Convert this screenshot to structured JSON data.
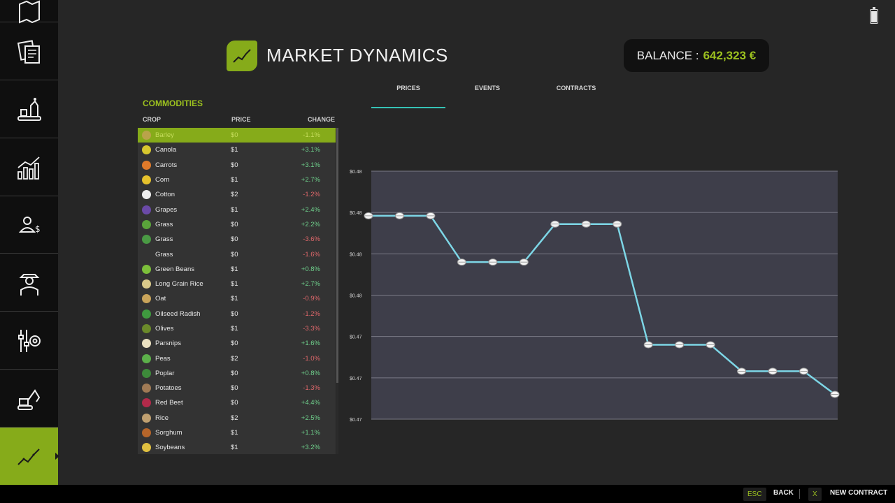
{
  "header": {
    "title": "MARKET DYNAMICS",
    "balance_label": "BALANCE :",
    "balance_value": "642,323 €"
  },
  "tabs": [
    {
      "label": "PRICES",
      "active": true
    },
    {
      "label": "EVENTS",
      "active": false
    },
    {
      "label": "CONTRACTS",
      "active": false
    }
  ],
  "sidebar": {
    "items": [
      {
        "icon": "map-icon"
      },
      {
        "icon": "contracts-icon"
      },
      {
        "icon": "production-icon"
      },
      {
        "icon": "statistics-icon"
      },
      {
        "icon": "finances-icon"
      },
      {
        "icon": "workers-icon"
      },
      {
        "icon": "settings-icon"
      },
      {
        "icon": "vehicles-icon"
      },
      {
        "icon": "market-chart-icon",
        "active": true
      }
    ]
  },
  "commodities": {
    "title": "COMMODITIES",
    "columns": {
      "crop": "CROP",
      "price": "PRICE",
      "change": "CHANGE"
    },
    "rows": [
      {
        "crop": "Barley",
        "price": "$0",
        "change": "-1.1%",
        "dir": "neg",
        "color": "#b9a34a",
        "selected": true
      },
      {
        "crop": "Canola",
        "price": "$1",
        "change": "+3.1%",
        "dir": "pos",
        "color": "#d7c72e"
      },
      {
        "crop": "Carrots",
        "price": "$0",
        "change": "+3.1%",
        "dir": "pos",
        "color": "#e07a2a"
      },
      {
        "crop": "Corn",
        "price": "$1",
        "change": "+2.7%",
        "dir": "pos",
        "color": "#e6c22c"
      },
      {
        "crop": "Cotton",
        "price": "$2",
        "change": "-1.2%",
        "dir": "neg",
        "color": "#eeeeee"
      },
      {
        "crop": "Grapes",
        "price": "$1",
        "change": "+2.4%",
        "dir": "pos",
        "color": "#6b4aa8"
      },
      {
        "crop": "Grass",
        "price": "$0",
        "change": "+2.2%",
        "dir": "pos",
        "color": "#5aa43a"
      },
      {
        "crop": "Grass",
        "price": "$0",
        "change": "-3.6%",
        "dir": "neg",
        "color": "#4a9a44"
      },
      {
        "crop": "Grass",
        "price": "$0",
        "change": "-1.6%",
        "dir": "neg",
        "color": ""
      },
      {
        "crop": "Green Beans",
        "price": "$1",
        "change": "+0.8%",
        "dir": "pos",
        "color": "#7cbf3a"
      },
      {
        "crop": "Long Grain Rice",
        "price": "$1",
        "change": "+2.7%",
        "dir": "pos",
        "color": "#d9c98a"
      },
      {
        "crop": "Oat",
        "price": "$1",
        "change": "-0.9%",
        "dir": "neg",
        "color": "#c9a45a"
      },
      {
        "crop": "Oilseed Radish",
        "price": "$0",
        "change": "-1.2%",
        "dir": "neg",
        "color": "#3f9a3f"
      },
      {
        "crop": "Olives",
        "price": "$1",
        "change": "-3.3%",
        "dir": "neg",
        "color": "#6b8a2a"
      },
      {
        "crop": "Parsnips",
        "price": "$0",
        "change": "+1.6%",
        "dir": "pos",
        "color": "#eae0c0"
      },
      {
        "crop": "Peas",
        "price": "$2",
        "change": "-1.0%",
        "dir": "neg",
        "color": "#5cb04a"
      },
      {
        "crop": "Poplar",
        "price": "$0",
        "change": "+0.8%",
        "dir": "pos",
        "color": "#3d8a3a"
      },
      {
        "crop": "Potatoes",
        "price": "$0",
        "change": "-1.3%",
        "dir": "neg",
        "color": "#a07a55"
      },
      {
        "crop": "Red Beet",
        "price": "$0",
        "change": "+4.4%",
        "dir": "pos",
        "color": "#b32a4a"
      },
      {
        "crop": "Rice",
        "price": "$2",
        "change": "+2.5%",
        "dir": "pos",
        "color": "#c0a070"
      },
      {
        "crop": "Sorghum",
        "price": "$1",
        "change": "+1.1%",
        "dir": "pos",
        "color": "#b5652a"
      },
      {
        "crop": "Soybeans",
        "price": "$1",
        "change": "+3.2%",
        "dir": "pos",
        "color": "#e0c040"
      }
    ]
  },
  "chart_data": {
    "type": "line",
    "ytick_labels": [
      "$0.48",
      "$0.48",
      "$0.48",
      "$0.48",
      "$0.47",
      "$0.47",
      "$0.47"
    ],
    "ylim": [
      0.4675,
      0.4825
    ],
    "values": [
      0.4798,
      0.4798,
      0.4798,
      0.477,
      0.477,
      0.477,
      0.4793,
      0.4793,
      0.4793,
      0.472,
      0.472,
      0.472,
      0.4704,
      0.4704,
      0.4704,
      0.469
    ],
    "line_color": "#7dd6e6",
    "plot_bg": "#3e3e4a",
    "grid": true
  },
  "footer": {
    "back_key": "ESC",
    "back_label": "BACK",
    "new_key": "X",
    "new_label": "NEW CONTRACT"
  }
}
